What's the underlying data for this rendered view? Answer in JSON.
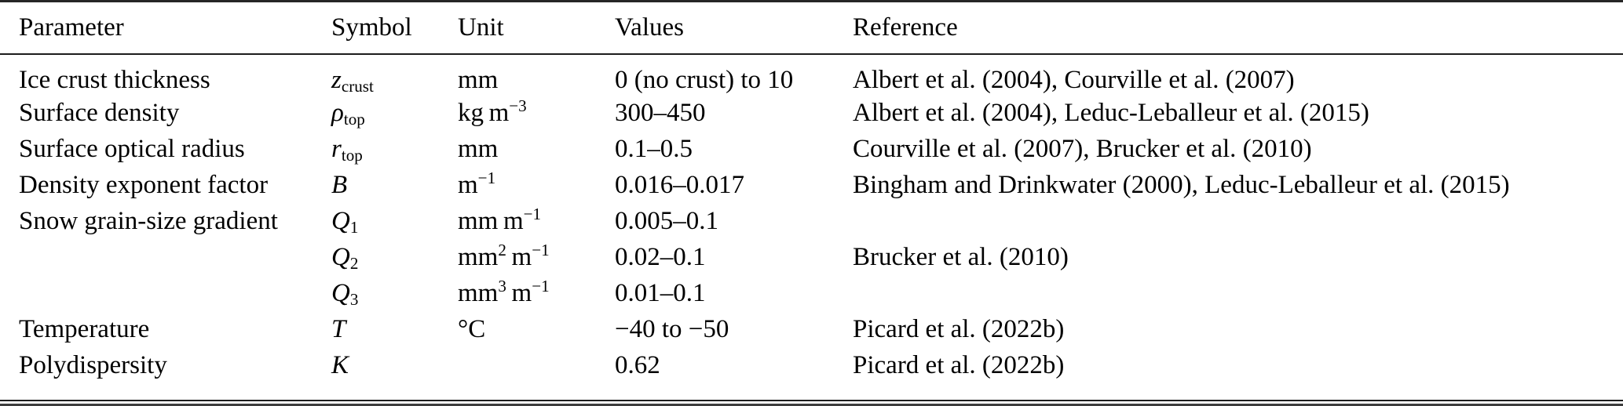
{
  "table": {
    "columns": [
      {
        "key": "parameter",
        "label": "Parameter"
      },
      {
        "key": "symbol",
        "label": "Symbol"
      },
      {
        "key": "unit",
        "label": "Unit"
      },
      {
        "key": "values",
        "label": "Values"
      },
      {
        "key": "reference",
        "label": "Reference"
      }
    ],
    "rows": [
      {
        "parameter": "Ice crust thickness",
        "symbol": {
          "base": "z",
          "sub": "crust"
        },
        "unit": [
          {
            "text": "mm"
          }
        ],
        "values": "0 (no crust) to 10",
        "reference": "Albert et al. (2004), Courville et al. (2007)"
      },
      {
        "parameter": "Surface density",
        "symbol": {
          "base": "ρ",
          "sub": "top"
        },
        "unit": [
          {
            "text": "kg m"
          },
          {
            "sup": "−3"
          }
        ],
        "values": "300–450",
        "reference": "Albert et al. (2004), Leduc-Leballeur et al. (2015)"
      },
      {
        "parameter": "Surface optical radius",
        "symbol": {
          "base": "r",
          "sub": "top"
        },
        "unit": [
          {
            "text": "mm"
          }
        ],
        "values": "0.1–0.5",
        "reference": "Courville et al. (2007), Brucker et al. (2010)"
      },
      {
        "parameter": "Density exponent factor",
        "symbol": {
          "base": "B",
          "sub": ""
        },
        "unit": [
          {
            "text": "m"
          },
          {
            "sup": "−1"
          }
        ],
        "values": "0.016–0.017",
        "reference": "Bingham and Drinkwater (2000), Leduc-Leballeur et al. (2015)"
      },
      {
        "parameter": "Snow grain-size gradient",
        "symbol": {
          "base": "Q",
          "sub": "1"
        },
        "unit": [
          {
            "text": "mm m"
          },
          {
            "sup": "−1"
          }
        ],
        "values": "0.005–0.1",
        "reference": ""
      },
      {
        "parameter": "",
        "symbol": {
          "base": "Q",
          "sub": "2"
        },
        "unit": [
          {
            "text": "mm"
          },
          {
            "sup": "2"
          },
          {
            "text": " m"
          },
          {
            "sup": "−1"
          }
        ],
        "values": "0.02–0.1",
        "reference": "Brucker et al. (2010)"
      },
      {
        "parameter": "",
        "symbol": {
          "base": "Q",
          "sub": "3"
        },
        "unit": [
          {
            "text": "mm"
          },
          {
            "sup": "3"
          },
          {
            "text": " m"
          },
          {
            "sup": "−1"
          }
        ],
        "values": "0.01–0.1",
        "reference": ""
      },
      {
        "parameter": "Temperature",
        "symbol": {
          "base": "T",
          "sub": ""
        },
        "unit": [
          {
            "text": "°C"
          }
        ],
        "values": "−40 to −50",
        "reference": "Picard et al. (2022b)"
      },
      {
        "parameter": "Polydispersity",
        "symbol": {
          "base": "K",
          "sub": ""
        },
        "unit": [],
        "values": "0.62",
        "reference": "Picard et al. (2022b)"
      }
    ]
  },
  "colors": {
    "text": "#000000",
    "rule": "#1c1c1c",
    "background": "#ffffff"
  }
}
